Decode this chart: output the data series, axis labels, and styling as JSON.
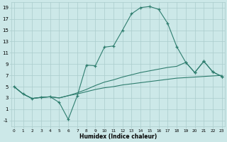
{
  "xlabel": "Humidex (Indice chaleur)",
  "x_values": [
    0,
    1,
    2,
    3,
    4,
    5,
    6,
    7,
    8,
    9,
    10,
    11,
    12,
    13,
    14,
    15,
    16,
    17,
    18,
    19,
    20,
    21,
    22,
    23
  ],
  "line1_y": [
    5.0,
    3.7,
    2.9,
    3.1,
    3.2,
    2.2,
    -0.8,
    3.4,
    8.8,
    8.7,
    12.0,
    12.2,
    15.0,
    17.9,
    19.0,
    19.2,
    18.7,
    16.2,
    12.1,
    9.3,
    7.5,
    9.5,
    7.6,
    6.8
  ],
  "line2_y": [
    5.0,
    3.7,
    2.9,
    3.1,
    3.2,
    3.0,
    3.4,
    3.9,
    4.5,
    5.2,
    5.8,
    6.2,
    6.7,
    7.1,
    7.5,
    7.8,
    8.1,
    8.4,
    8.6,
    9.3,
    7.5,
    9.5,
    7.6,
    6.8
  ],
  "line3_y": [
    5.0,
    3.7,
    2.9,
    3.1,
    3.2,
    3.0,
    3.4,
    3.7,
    4.1,
    4.5,
    4.8,
    5.0,
    5.3,
    5.5,
    5.7,
    5.9,
    6.1,
    6.3,
    6.5,
    6.6,
    6.7,
    6.8,
    6.9,
    7.0
  ],
  "line_color": "#2e7d6e",
  "bg_color": "#cce8e8",
  "grid_color": "#aacccc",
  "ylim": [
    -2,
    20
  ],
  "yticks": [
    -1,
    1,
    3,
    5,
    7,
    9,
    11,
    13,
    15,
    17,
    19
  ],
  "xticks": [
    0,
    1,
    2,
    3,
    4,
    5,
    6,
    7,
    8,
    9,
    10,
    11,
    12,
    13,
    14,
    15,
    16,
    17,
    18,
    19,
    20,
    21,
    22,
    23
  ]
}
